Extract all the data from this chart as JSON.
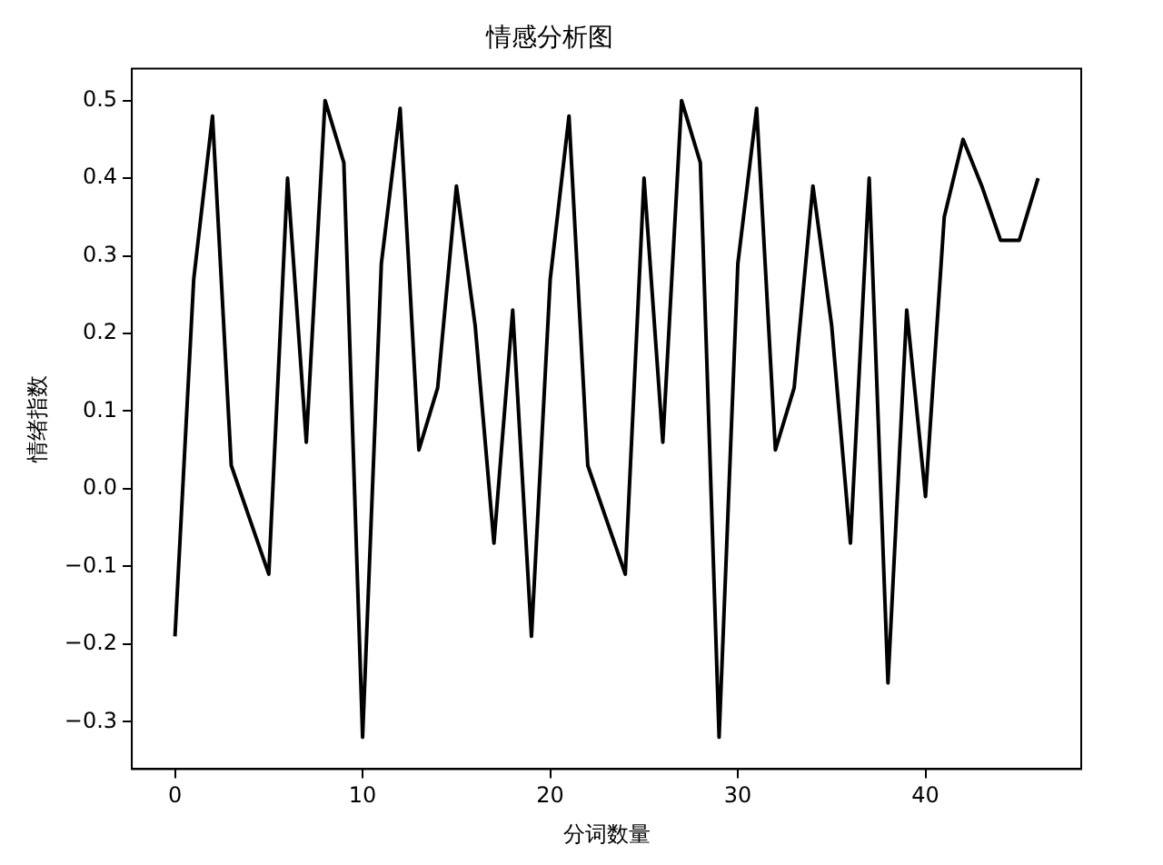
{
  "chart_data": {
    "type": "line",
    "title": "情感分析图",
    "xlabel": "分词数量",
    "ylabel": "情绪指数",
    "x": [
      0,
      1,
      2,
      3,
      4,
      5,
      6,
      7,
      8,
      9,
      10,
      11,
      12,
      13,
      14,
      15,
      16,
      17,
      18,
      19,
      20,
      21,
      22,
      23,
      24,
      25,
      26,
      27,
      28,
      29,
      30,
      31,
      32,
      33,
      34,
      35,
      36,
      37,
      38,
      39,
      40,
      41,
      42,
      43,
      44,
      45,
      46
    ],
    "series": [
      {
        "color": "#000000",
        "values": [
          -0.19,
          0.27,
          0.48,
          0.03,
          -0.04,
          -0.11,
          0.4,
          0.06,
          0.5,
          0.42,
          -0.32,
          0.29,
          0.49,
          0.05,
          0.13,
          0.39,
          0.21,
          -0.07,
          0.23,
          -0.19,
          0.27,
          0.48,
          0.03,
          -0.04,
          -0.11,
          0.4,
          0.06,
          0.5,
          0.42,
          -0.32,
          0.29,
          0.49,
          0.05,
          0.13,
          0.39,
          0.21,
          -0.07,
          0.4,
          -0.25,
          0.23,
          -0.01,
          0.35,
          0.45,
          0.39,
          0.32,
          0.32,
          0.4
        ]
      }
    ],
    "xlim": [
      -2.3,
      48.3
    ],
    "xticks": [
      0,
      10,
      20,
      30,
      40
    ],
    "ylim": [
      -0.361,
      0.541
    ],
    "yticks": [
      {
        "value": -0.3,
        "label": "−0.3"
      },
      {
        "value": -0.2,
        "label": "−0.2"
      },
      {
        "value": -0.1,
        "label": "−0.1"
      },
      {
        "value": 0,
        "label": "0.0"
      },
      0.1,
      0.2,
      0.3,
      0.4,
      0.5
    ],
    "grid": false,
    "legend": false,
    "marker": "none",
    "line_style": "solid"
  }
}
